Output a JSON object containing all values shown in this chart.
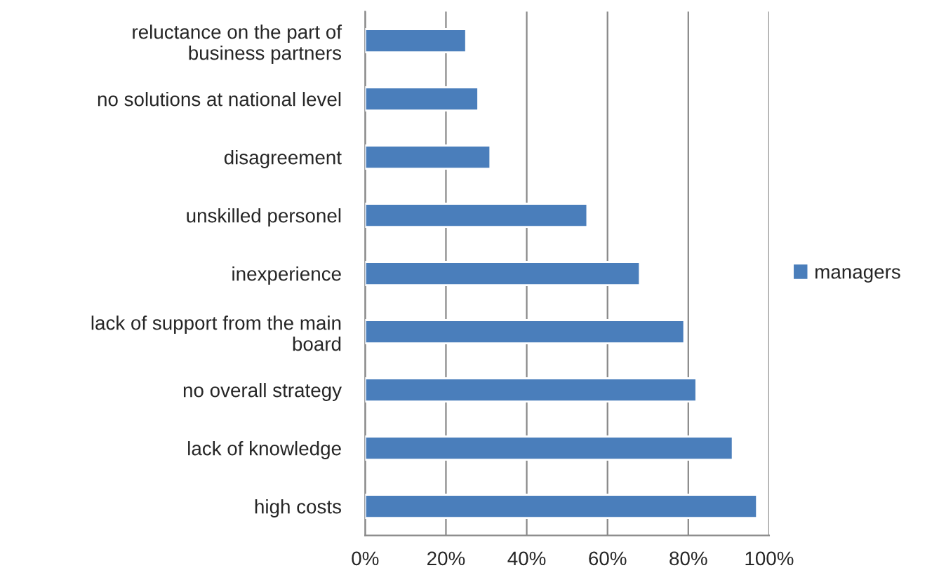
{
  "chart_data": {
    "type": "bar",
    "orientation": "horizontal",
    "categories": [
      "reluctance on the part of business partners",
      "no solutions at national level",
      "disagreement",
      "unskilled personel",
      "inexperience",
      "lack of support from the main board",
      "no overall strategy",
      "lack of knowledge",
      "high costs"
    ],
    "series": [
      {
        "name": "managers",
        "color": "#4a7ebb",
        "values": [
          25,
          28,
          31,
          55,
          68,
          79,
          82,
          91,
          97
        ]
      }
    ],
    "xlim": [
      0,
      100
    ],
    "xticks": [
      {
        "value": 0,
        "label": "0%"
      },
      {
        "value": 20,
        "label": "20%"
      },
      {
        "value": 40,
        "label": "40%"
      },
      {
        "value": 60,
        "label": "60%"
      },
      {
        "value": 80,
        "label": "80%"
      },
      {
        "value": 100,
        "label": "100%"
      }
    ],
    "grid": "x",
    "legend": "right"
  }
}
